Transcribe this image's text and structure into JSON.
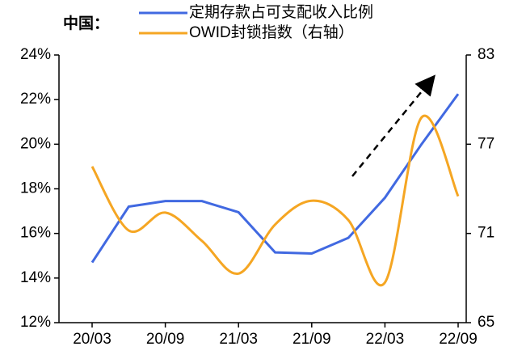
{
  "chart_data": {
    "type": "line",
    "title": "中国：",
    "categories": [
      "20/03",
      null,
      "20/09",
      null,
      "21/03",
      null,
      "21/09",
      null,
      "22/03",
      null,
      "22/09"
    ],
    "series": [
      {
        "name": "定期存款占可支配收入比例",
        "color": "#4169e1",
        "values": [
          14.7,
          17.2,
          17.45,
          17.45,
          16.95,
          15.15,
          15.1,
          15.8,
          17.6,
          20.0,
          22.25
        ]
      },
      {
        "name": "OWID封锁指数（右轴）",
        "color": "#f5a623",
        "axis": "y2",
        "values": [
          75.5,
          71.2,
          72.4,
          70.5,
          68.3,
          71.6,
          73.2,
          71.9,
          67.7,
          78.8,
          73.5
        ]
      }
    ],
    "ylim": [
      12,
      24
    ],
    "yticks": [
      {
        "value": 12,
        "label": "12%"
      },
      {
        "value": 14,
        "label": "14%"
      },
      {
        "value": 16,
        "label": "16%"
      },
      {
        "value": 18,
        "label": "18%"
      },
      {
        "value": 20,
        "label": "20%"
      },
      {
        "value": 22,
        "label": "22%"
      },
      {
        "value": 24,
        "label": "24%"
      }
    ],
    "y2lim": [
      65,
      83
    ],
    "y2ticks": [
      65,
      71,
      77,
      83
    ],
    "grid": false
  }
}
